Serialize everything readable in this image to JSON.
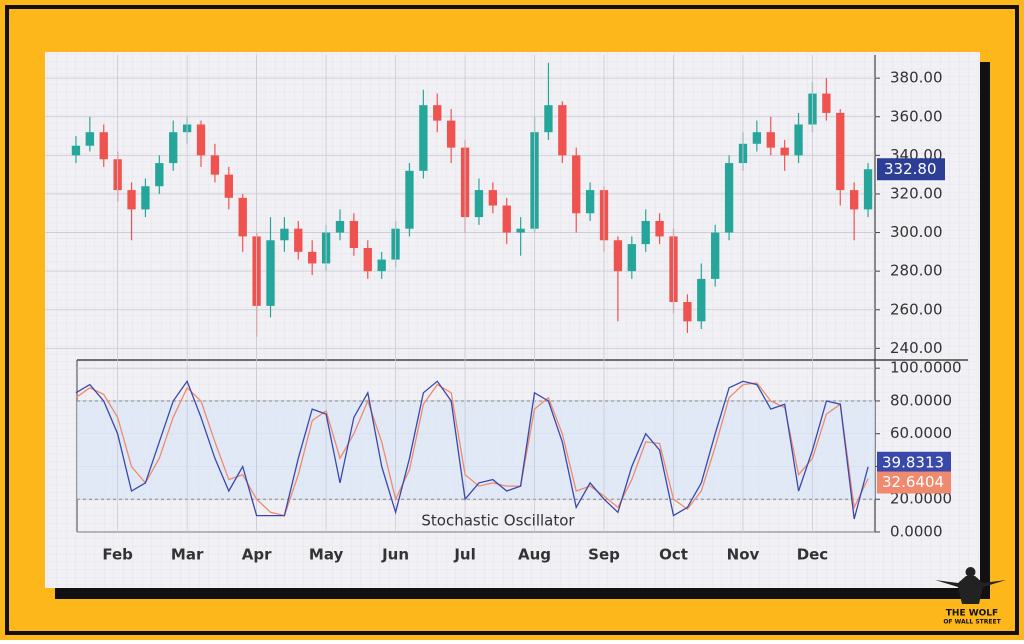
{
  "chart_data": [
    {
      "type": "candlestick",
      "up_color": "#26a69a",
      "down_color": "#ef5350",
      "open": [
        340,
        345,
        352,
        338,
        322,
        312,
        324,
        336,
        352,
        356,
        340,
        330,
        318,
        298,
        262,
        296,
        302,
        290,
        284,
        300,
        306,
        292,
        280,
        286,
        302,
        332,
        366,
        358,
        344,
        308,
        322,
        314,
        300,
        302,
        352,
        366,
        340,
        310,
        322,
        296,
        280,
        294,
        306,
        298,
        264,
        254,
        276,
        300,
        336,
        346,
        352,
        344,
        340,
        356,
        372,
        362,
        322,
        312
      ],
      "high": [
        350,
        360,
        356,
        342,
        326,
        328,
        340,
        358,
        360,
        358,
        346,
        334,
        320,
        300,
        308,
        308,
        306,
        296,
        304,
        312,
        310,
        296,
        290,
        306,
        336,
        374,
        372,
        364,
        348,
        328,
        326,
        318,
        308,
        360,
        388,
        368,
        344,
        326,
        324,
        298,
        298,
        312,
        310,
        302,
        268,
        284,
        304,
        340,
        352,
        358,
        360,
        348,
        362,
        378,
        380,
        364,
        326,
        336
      ],
      "low": [
        336,
        342,
        334,
        316,
        296,
        308,
        320,
        332,
        346,
        334,
        326,
        312,
        290,
        246,
        256,
        290,
        286,
        278,
        280,
        296,
        288,
        276,
        276,
        282,
        298,
        328,
        352,
        336,
        300,
        304,
        310,
        294,
        288,
        300,
        348,
        336,
        300,
        306,
        290,
        254,
        276,
        290,
        294,
        258,
        248,
        250,
        272,
        296,
        332,
        342,
        340,
        332,
        336,
        352,
        358,
        314,
        296,
        308
      ],
      "close": [
        345,
        352,
        338,
        322,
        312,
        324,
        336,
        352,
        356,
        340,
        330,
        318,
        298,
        262,
        296,
        302,
        290,
        284,
        300,
        306,
        292,
        280,
        286,
        302,
        332,
        366,
        358,
        344,
        308,
        322,
        314,
        300,
        302,
        352,
        366,
        340,
        310,
        322,
        296,
        280,
        294,
        306,
        298,
        264,
        254,
        276,
        300,
        336,
        346,
        352,
        344,
        340,
        356,
        372,
        362,
        322,
        312,
        332.8
      ],
      "last_value_label": "332.80",
      "tag_color": "#2c3e96",
      "ylim": [
        235,
        392
      ],
      "yticks": [
        {
          "value": 240,
          "label": "240.00"
        },
        {
          "value": 260,
          "label": "260.00"
        },
        {
          "value": 280,
          "label": "280.00"
        },
        {
          "value": 300,
          "label": "300.00"
        },
        {
          "value": 320,
          "label": "320.00"
        },
        {
          "value": 340,
          "label": "340.00"
        },
        {
          "value": 360,
          "label": "360.00"
        },
        {
          "value": 380,
          "label": "380.00"
        }
      ],
      "grid": true
    },
    {
      "type": "line",
      "title": "Stochastic Oscillator",
      "categories": [
        null,
        null,
        null,
        "Feb",
        null,
        null,
        null,
        null,
        "Mar",
        null,
        null,
        null,
        null,
        "Apr",
        null,
        null,
        null,
        null,
        "May",
        null,
        null,
        null,
        null,
        "Jun",
        null,
        null,
        null,
        null,
        "Jul",
        null,
        null,
        null,
        null,
        "Aug",
        null,
        null,
        null,
        null,
        "Sep",
        null,
        null,
        null,
        null,
        "Oct",
        null,
        null,
        null,
        null,
        "Nov",
        null,
        null,
        null,
        null,
        "Dec",
        null,
        null,
        null,
        null
      ],
      "series": [
        {
          "color": "#3949ab",
          "values": [
            85,
            90,
            80,
            60,
            25,
            30,
            55,
            80,
            92,
            70,
            45,
            25,
            40,
            10,
            10,
            10,
            45,
            75,
            72,
            30,
            70,
            85,
            40,
            12,
            45,
            85,
            92,
            80,
            20,
            30,
            32,
            25,
            28,
            85,
            80,
            55,
            15,
            30,
            20,
            12,
            40,
            60,
            50,
            10,
            15,
            30,
            60,
            88,
            92,
            90,
            75,
            78,
            25,
            50,
            80,
            78,
            8,
            39.8313
          ]
        },
        {
          "color": "#f08a6e",
          "values": [
            82,
            88,
            84,
            70,
            40,
            30,
            45,
            70,
            88,
            80,
            55,
            32,
            35,
            20,
            12,
            10,
            35,
            68,
            74,
            45,
            60,
            80,
            55,
            20,
            38,
            78,
            90,
            85,
            35,
            28,
            30,
            28,
            28,
            75,
            82,
            60,
            25,
            28,
            22,
            15,
            32,
            55,
            54,
            20,
            14,
            25,
            52,
            82,
            90,
            91,
            80,
            76,
            35,
            45,
            72,
            78,
            15,
            32.6404
          ]
        }
      ],
      "bands": [
        20,
        80
      ],
      "band_color": "#dbe6f6",
      "ylim": [
        0,
        105
      ],
      "yticks": [
        {
          "value": 0,
          "label": "0.0000"
        },
        {
          "value": 20,
          "label": "20.0000"
        },
        {
          "value": 40,
          "label": "40.0000"
        },
        {
          "value": 60,
          "label": "60.0000"
        },
        {
          "value": 80,
          "label": "80.0000"
        },
        {
          "value": 100,
          "label": "100.0000"
        }
      ],
      "grid": true
    }
  ],
  "logo": {
    "line1": "THE WOLF",
    "line2": "OF WALL STREET"
  }
}
